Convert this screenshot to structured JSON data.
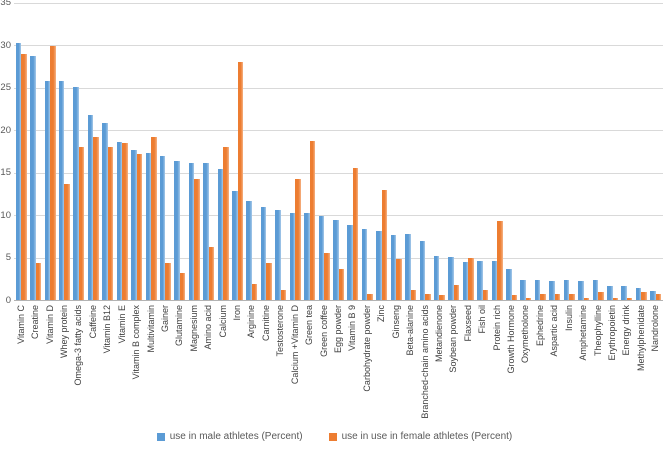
{
  "chart_data": {
    "type": "bar",
    "title": "",
    "xlabel": "",
    "ylabel": "",
    "ylim": [
      0,
      35
    ],
    "ytick_step": 5,
    "grid": "horizontal",
    "legend_position": "bottom-center",
    "categories": [
      "Vitamin C",
      "Creatine",
      "Vitamin D",
      "Whey protein",
      "Omega-3 fatty acids",
      "Caffeine",
      "Vitamin B12",
      "Vitamin E",
      "Vitamin B complex",
      "Multivitamin",
      "Gainer",
      "Glutamine",
      "Magnesium",
      "Amino acid",
      "Calcium",
      "Iron",
      "Arginine",
      "Carnitine",
      "Testosterone",
      "Calcium +Vitamin D",
      "Green tea",
      "Green coffee",
      "Egg powder",
      "Vitamin B 9",
      "Carbohydrate powder",
      "Zinc",
      "Ginseng",
      "Beta-alanine",
      "Branched-chain amino acids",
      "Metandienone",
      "Soybean powder",
      "Flaxseed",
      "Fish oil",
      "Protein rich",
      "Growth Hormone",
      "Oxymetholone",
      "Ephedrine",
      "Aspartic acid",
      "Insulin",
      "Amphetamine",
      "Theophylline",
      "Erythropoietin",
      "Energy drink",
      "Methylphenidate",
      "Nandrolone"
    ],
    "series": [
      {
        "name": "use in male athletes (Percent)",
        "color": "#5b9bd5",
        "values": [
          30.2,
          28.7,
          25.8,
          25.8,
          25.1,
          21.8,
          20.8,
          18.6,
          17.7,
          17.3,
          16.9,
          16.4,
          16.1,
          16.1,
          15.4,
          12.8,
          11.7,
          11.0,
          10.6,
          10.2,
          10.2,
          9.9,
          9.4,
          8.8,
          8.4,
          8.1,
          7.7,
          7.8,
          6.9,
          5.2,
          5.1,
          4.5,
          4.6,
          4.6,
          3.6,
          2.4,
          2.3,
          2.2,
          2.3,
          2.2,
          2.4,
          1.6,
          1.6,
          1.4,
          1.1
        ]
      },
      {
        "name": "use in use in female athletes  (Percent)",
        "color": "#ed7d31",
        "values": [
          28.9,
          4.4,
          29.9,
          13.6,
          18.0,
          19.2,
          18.0,
          18.5,
          17.2,
          19.2,
          4.4,
          3.2,
          14.2,
          6.2,
          18.0,
          28.0,
          1.9,
          4.3,
          1.2,
          14.2,
          18.7,
          5.5,
          3.7,
          15.5,
          0.7,
          12.9,
          4.8,
          1.2,
          0.7,
          0.6,
          1.8,
          4.9,
          1.2,
          9.3,
          0.6,
          0.2,
          0.7,
          0.7,
          0.7,
          0.2,
          1.0,
          0.2,
          0.2,
          0.9,
          0.7
        ]
      }
    ],
    "yticks": [
      0,
      5,
      10,
      15,
      20,
      25,
      30,
      35
    ]
  },
  "colors": {
    "male_bar": "#5b9bd5",
    "male_bar_highlight": "#a6c9e9",
    "female_bar": "#ed7d31",
    "female_bar_highlight": "#f5b183",
    "gridline": "#d9d9d9",
    "axis_line": "#b3b3b3",
    "tick_text": "#595959",
    "category_text": "#404040"
  }
}
